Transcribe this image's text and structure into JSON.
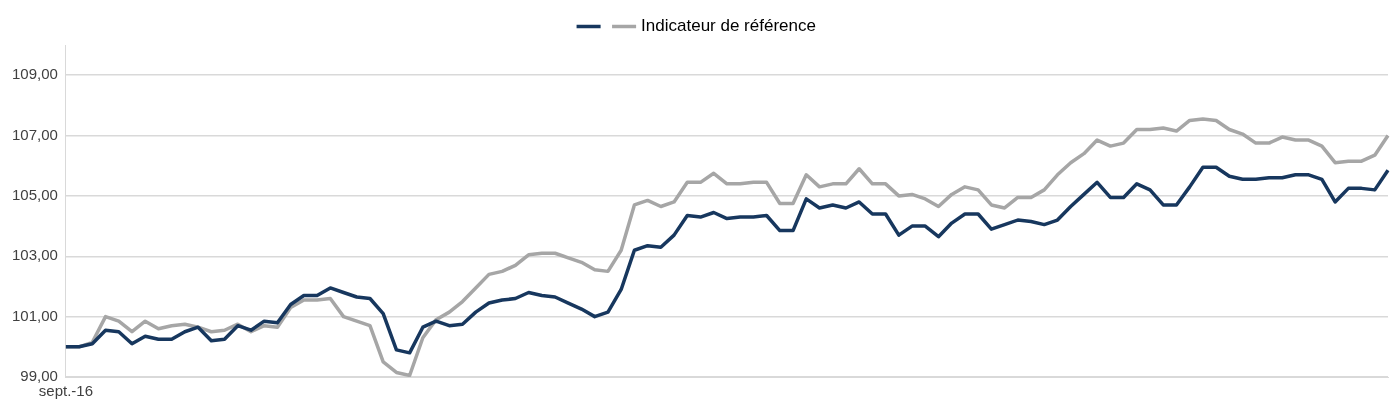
{
  "chart_data": {
    "type": "line",
    "categories": [
      "sept.-16",
      null,
      null,
      null,
      null,
      null,
      null,
      null,
      null,
      null,
      null,
      null,
      null,
      null,
      null,
      null,
      null,
      null,
      null,
      null,
      null,
      null,
      null,
      null,
      null,
      null,
      null,
      null,
      null,
      null,
      null,
      null,
      null,
      null,
      null,
      null,
      null,
      null,
      null,
      null,
      null,
      null,
      null,
      null,
      null,
      null,
      null,
      null,
      null,
      null,
      null,
      null,
      null,
      null,
      null,
      null,
      null,
      null,
      null,
      null,
      null,
      null,
      null,
      null,
      null,
      null,
      null,
      null,
      null,
      null,
      null,
      null,
      null,
      null,
      null,
      null,
      null,
      null,
      null,
      null,
      null,
      null,
      null,
      null,
      null,
      null,
      null,
      null,
      null,
      null,
      null,
      null,
      null,
      null,
      null,
      null,
      null,
      null,
      null,
      null,
      null
    ],
    "series": [
      {
        "color": "#17375e",
        "values": [
          100.0,
          100.0,
          100.1,
          100.55,
          100.5,
          100.1,
          100.35,
          100.25,
          100.25,
          100.5,
          100.65,
          100.2,
          100.25,
          100.7,
          100.55,
          100.85,
          100.8,
          101.4,
          101.7,
          101.7,
          101.95,
          101.8,
          101.65,
          101.6,
          101.1,
          99.9,
          99.8,
          100.65,
          100.85,
          100.7,
          100.75,
          101.15,
          101.45,
          101.55,
          101.6,
          101.8,
          101.7,
          101.65,
          101.45,
          101.25,
          101.0,
          101.15,
          101.9,
          103.2,
          103.35,
          103.3,
          103.7,
          104.35,
          104.3,
          104.45,
          104.25,
          104.3,
          104.3,
          104.35,
          103.85,
          103.85,
          104.9,
          104.6,
          104.7,
          104.6,
          104.8,
          104.4,
          104.4,
          103.7,
          104.0,
          104.0,
          103.65,
          104.1,
          104.4,
          104.4,
          103.9,
          104.05,
          104.2,
          104.15,
          104.05,
          104.2,
          104.65,
          105.05,
          105.45,
          104.95,
          104.95,
          105.4,
          105.2,
          104.7,
          104.7,
          105.3,
          105.95,
          105.95,
          105.65,
          105.55,
          105.55,
          105.6,
          105.6,
          105.7,
          105.7,
          105.55,
          104.8,
          105.25,
          105.25,
          105.2,
          105.85
        ]
      },
      {
        "name": "Indicateur de référence",
        "color": "#a6a6a6",
        "values": [
          100.0,
          100.0,
          100.15,
          101.0,
          100.85,
          100.5,
          100.85,
          100.6,
          100.7,
          100.75,
          100.65,
          100.5,
          100.55,
          100.75,
          100.5,
          100.7,
          100.65,
          101.3,
          101.55,
          101.55,
          101.6,
          101.0,
          100.85,
          100.7,
          99.5,
          99.15,
          99.05,
          100.3,
          100.9,
          101.15,
          101.5,
          101.95,
          102.4,
          102.5,
          102.7,
          103.05,
          103.1,
          103.1,
          102.95,
          102.8,
          102.55,
          102.5,
          103.2,
          104.7,
          104.85,
          104.65,
          104.8,
          105.45,
          105.45,
          105.75,
          105.4,
          105.4,
          105.45,
          105.45,
          104.75,
          104.75,
          105.7,
          105.3,
          105.4,
          105.4,
          105.9,
          105.4,
          105.4,
          105.0,
          105.05,
          104.9,
          104.65,
          105.05,
          105.3,
          105.2,
          104.7,
          104.6,
          104.95,
          104.95,
          105.2,
          105.7,
          106.1,
          106.4,
          106.85,
          106.65,
          106.75,
          107.2,
          107.2,
          107.25,
          107.15,
          107.5,
          107.55,
          107.5,
          107.2,
          107.05,
          106.75,
          106.75,
          106.95,
          106.85,
          106.85,
          106.65,
          106.1,
          106.15,
          106.15,
          106.35,
          107.0
        ]
      }
    ],
    "ylim": [
      99,
      110
    ],
    "yticks": [
      {
        "value": 99,
        "label": "99,00"
      },
      {
        "value": 101,
        "label": "101,00"
      },
      {
        "value": 103,
        "label": "103,00"
      },
      {
        "value": 105,
        "label": "105,00"
      },
      {
        "value": 107,
        "label": "107,00"
      },
      {
        "value": 109,
        "label": "109,00"
      }
    ],
    "grid": "y",
    "legend": "top",
    "marker": "none"
  }
}
